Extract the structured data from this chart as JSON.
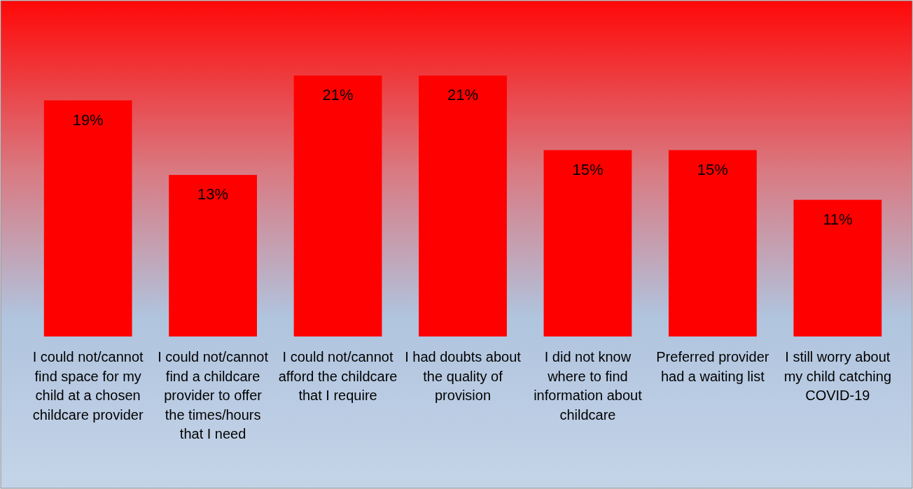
{
  "chart_data": {
    "type": "bar",
    "categories": [
      "I could not/cannot find space for my child at a chosen childcare provider",
      "I could not/cannot find a childcare provider to offer the times/hours that I need",
      "I could not/cannot afford the childcare that I require",
      "I had doubts about the quality of provision",
      "I did not know where to find information about childcare",
      "Preferred provider had a waiting list",
      "I still worry about my child catching COVID-19"
    ],
    "values": [
      19,
      13,
      21,
      21,
      15,
      15,
      11
    ],
    "color": "#ff0000",
    "value_labels": [
      "19%",
      "13%",
      "21%",
      "21%",
      "15%",
      "15%",
      "11%"
    ]
  }
}
